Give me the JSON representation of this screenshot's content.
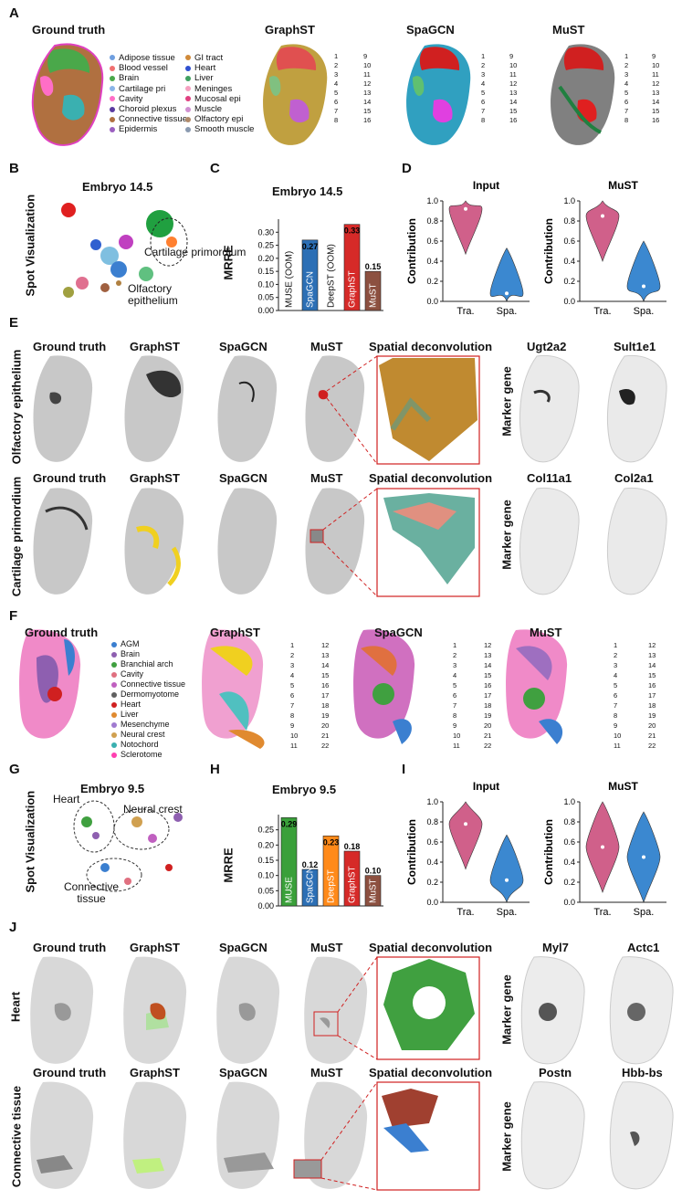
{
  "panels": {
    "A": "A",
    "B": "B",
    "C": "C",
    "D": "D",
    "E": "E",
    "F": "F",
    "G": "G",
    "H": "H",
    "I": "I",
    "J": "J"
  },
  "method_titles": {
    "ground_truth": "Ground truth",
    "graphst": "GraphST",
    "spagcn": "SpaGCN",
    "must": "MuST",
    "deconv": "Spatial deconvolution"
  },
  "panelA": {
    "legend_left": [
      "Adipose tissue",
      "Blood vessel",
      "Brain",
      "Cartilage pri",
      "Cavity",
      "Choroid plexus",
      "Connective tissue",
      "Epidermis"
    ],
    "legend_right": [
      "GI tract",
      "Heart",
      "Liver",
      "Meninges",
      "Mucosal epi",
      "Muscle",
      "Olfactory epi",
      "Smooth muscle"
    ],
    "colors_left": [
      "#6f9fe0",
      "#f07070",
      "#4aa84a",
      "#8ab4e8",
      "#ff6ec7",
      "#5a3aa0",
      "#b07040",
      "#9b5fc0"
    ],
    "colors_right": [
      "#d08a3a",
      "#3050d0",
      "#3fa060",
      "#f5a0c0",
      "#e04080",
      "#d090d0",
      "#b08a6a",
      "#8a9ab0"
    ],
    "cluster_nums_a": [
      "1",
      "2",
      "3",
      "4",
      "5",
      "6",
      "7",
      "8"
    ],
    "cluster_nums_b": [
      "9",
      "10",
      "11",
      "12",
      "13",
      "14",
      "15",
      "16"
    ]
  },
  "panelB": {
    "title": "Embryo 14.5",
    "ylabel": "Spot Visualization",
    "annot1": "Cartilage\nprimordium",
    "annot2": "Olfactory\nepithelium"
  },
  "panelC": {
    "chart_data": {
      "type": "bar",
      "title": "Embryo 14.5",
      "ylabel": "MRRE",
      "ylim": [
        0,
        0.35
      ],
      "categories": [
        "MUSE (OOM)",
        "SpaGCN",
        "DeepST (OOM)",
        "GraphST",
        "MuST"
      ],
      "values": [
        null,
        0.27,
        null,
        0.33,
        0.15
      ],
      "value_labels": [
        "",
        "0.27",
        "",
        "0.33",
        "0.15"
      ],
      "yticks": [
        "0.00",
        "0.05",
        "0.10",
        "0.15",
        "0.20",
        "0.25",
        "0.30"
      ],
      "colors": [
        "#ffffff",
        "#2c6fb5",
        "#ffffff",
        "#d62a28",
        "#8c5040"
      ]
    }
  },
  "panelD": {
    "chart_data": [
      {
        "type": "violin",
        "title": "Input",
        "ylabel": "Contribution",
        "categories": [
          "Tra.",
          "Spa."
        ],
        "medians": [
          0.92,
          0.08
        ],
        "ylim": [
          0,
          1
        ],
        "yticks": [
          "0.0",
          "0.2",
          "0.4",
          "0.6",
          "0.8",
          "1.0"
        ]
      },
      {
        "type": "violin",
        "title": "MuST",
        "ylabel": "Contribution",
        "categories": [
          "Tra.",
          "Spa."
        ],
        "medians": [
          0.85,
          0.15
        ],
        "ylim": [
          0,
          1
        ],
        "yticks": [
          "0.0",
          "0.2",
          "0.4",
          "0.6",
          "0.8",
          "1.0"
        ]
      }
    ]
  },
  "panelE": {
    "row1_label": "Olfactory epithelium",
    "row2_label": "Cartilage primordium",
    "marker_label": "Marker gene",
    "genes_row1": [
      "Ugt2a2",
      "Sult1e1"
    ],
    "genes_row2": [
      "Col11a1",
      "Col2a1"
    ]
  },
  "panelF": {
    "legend": [
      "AGM",
      "Brain",
      "Branchial arch",
      "Cavity",
      "Connective tissue",
      "Dermomyotome",
      "Heart",
      "Liver",
      "Mesenchyme",
      "Neural crest",
      "Notochord",
      "Sclerotome"
    ],
    "colors": [
      "#3b7fd0",
      "#8e5fb0",
      "#40a040",
      "#e07080",
      "#c060c0",
      "#606060",
      "#d02020",
      "#e08a30",
      "#a07ad0",
      "#d0a050",
      "#3ab0b0",
      "#ff3fb0"
    ],
    "nums_a": [
      "1",
      "2",
      "3",
      "4",
      "5",
      "6",
      "7",
      "8",
      "9",
      "10",
      "11"
    ],
    "nums_b": [
      "12",
      "13",
      "14",
      "15",
      "16",
      "17",
      "18",
      "19",
      "20",
      "21",
      "22"
    ]
  },
  "panelG": {
    "title": "Embryo 9.5",
    "ylabel": "Spot Visualization",
    "heart": "Heart",
    "neural": "Neural crest",
    "connective": "Connective\ntissue"
  },
  "panelH": {
    "chart_data": {
      "type": "bar",
      "title": "Embryo 9.5",
      "ylabel": "MRRE",
      "ylim": [
        0,
        0.3
      ],
      "categories": [
        "MUSE",
        "SpaGCN",
        "DeepST",
        "GraphST",
        "MuST"
      ],
      "values": [
        0.29,
        0.12,
        0.23,
        0.18,
        0.1
      ],
      "value_labels": [
        "0.29",
        "0.12",
        "0.23",
        "0.18",
        "0.10"
      ],
      "yticks": [
        "0.00",
        "0.05",
        "0.10",
        "0.15",
        "0.20",
        "0.25"
      ],
      "colors": [
        "#3aa03a",
        "#2c6fb5",
        "#ff8a1a",
        "#d62a28",
        "#8c5040"
      ]
    }
  },
  "panelI": {
    "chart_data": [
      {
        "type": "violin",
        "title": "Input",
        "ylabel": "Contribution",
        "categories": [
          "Tra.",
          "Spa."
        ],
        "medians": [
          0.78,
          0.22
        ],
        "ylim": [
          0,
          1
        ],
        "yticks": [
          "0.0",
          "0.2",
          "0.4",
          "0.6",
          "0.8",
          "1.0"
        ]
      },
      {
        "type": "violin",
        "title": "MuST",
        "ylabel": "Contribution",
        "categories": [
          "Tra.",
          "Spa."
        ],
        "medians": [
          0.55,
          0.45
        ],
        "ylim": [
          0,
          1
        ],
        "yticks": [
          "0.0",
          "0.2",
          "0.4",
          "0.6",
          "0.8",
          "1.0"
        ]
      }
    ]
  },
  "panelJ": {
    "row1_label": "Heart",
    "row2_label": "Connective tissue",
    "marker_label": "Marker gene",
    "genes_row1": [
      "Myl7",
      "Actc1"
    ],
    "genes_row2": [
      "Postn",
      "Hbb-bs"
    ]
  }
}
